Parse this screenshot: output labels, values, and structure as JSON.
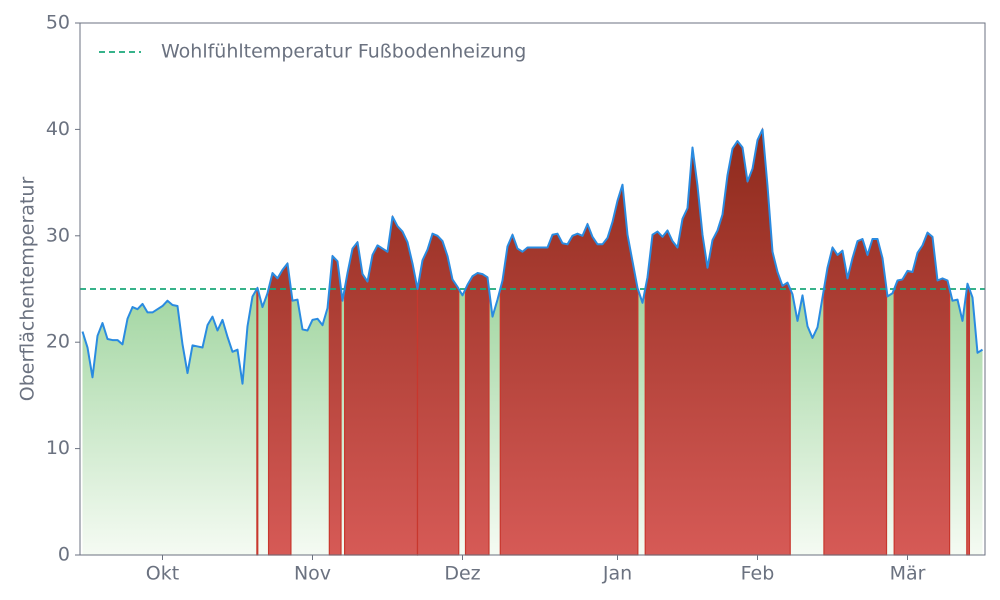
{
  "chart_data": {
    "type": "line",
    "y_label": "Oberflächentemperatur",
    "categories": [
      null,
      null,
      null,
      null,
      null,
      null,
      null,
      null,
      null,
      null,
      null,
      null,
      null,
      null,
      null,
      null,
      "Okt",
      null,
      null,
      null,
      null,
      null,
      null,
      null,
      null,
      null,
      null,
      null,
      null,
      null,
      null,
      null,
      null,
      null,
      null,
      null,
      null,
      null,
      null,
      null,
      null,
      null,
      null,
      null,
      null,
      null,
      "Nov",
      null,
      null,
      null,
      null,
      null,
      null,
      null,
      null,
      null,
      null,
      null,
      null,
      null,
      null,
      null,
      null,
      null,
      null,
      null,
      null,
      null,
      null,
      null,
      null,
      null,
      null,
      null,
      null,
      null,
      "Dez",
      null,
      null,
      null,
      null,
      null,
      null,
      null,
      null,
      null,
      null,
      null,
      null,
      null,
      null,
      null,
      null,
      null,
      null,
      null,
      null,
      null,
      null,
      null,
      null,
      null,
      null,
      null,
      null,
      null,
      null,
      "Jan",
      null,
      null,
      null,
      null,
      null,
      null,
      null,
      null,
      null,
      null,
      null,
      null,
      null,
      null,
      null,
      null,
      null,
      null,
      null,
      null,
      null,
      null,
      null,
      null,
      null,
      null,
      null,
      "Feb",
      null,
      null,
      null,
      null,
      null,
      null,
      null,
      null,
      null,
      null,
      null,
      null,
      null,
      null,
      null,
      null,
      null,
      null,
      null,
      null,
      null,
      null,
      null,
      null,
      null,
      null,
      null,
      null,
      null,
      "Mär",
      null,
      null,
      null,
      null,
      null,
      null,
      null,
      null,
      null,
      null,
      null,
      null,
      null,
      null,
      null
    ],
    "values": [
      21,
      19.5,
      16.7,
      20.6,
      21.8,
      20.3,
      20.2,
      20.2,
      19.8,
      22.2,
      23.3,
      23.1,
      23.6,
      22.8,
      22.8,
      23.1,
      23.4,
      23.9,
      23.5,
      23.4,
      19.8,
      17.1,
      19.7,
      19.6,
      19.5,
      21.6,
      22.4,
      21.1,
      22.1,
      20.5,
      19.1,
      19.3,
      16.1,
      21.5,
      24.3,
      25.1,
      23.3,
      24.6,
      26.5,
      26,
      26.8,
      27.4,
      23.9,
      24,
      21.2,
      21.1,
      22.1,
      22.2,
      21.6,
      23.2,
      28.1,
      27.6,
      23.9,
      26.5,
      28.8,
      29.4,
      26.4,
      25.7,
      28.2,
      29.1,
      28.8,
      28.5,
      31.8,
      30.9,
      30.4,
      29.4,
      27.4,
      25,
      27.7,
      28.7,
      30.2,
      30,
      29.5,
      28.1,
      25.9,
      25.2,
      24.4,
      25.4,
      26.2,
      26.5,
      26.4,
      26.1,
      22.4,
      24,
      25.8,
      29,
      30.1,
      28.8,
      28.5,
      28.9,
      28.9,
      28.9,
      28.9,
      28.9,
      30.1,
      30.2,
      29.3,
      29.2,
      30,
      30.2,
      30,
      31.1,
      29.9,
      29.2,
      29.2,
      29.8,
      31.3,
      33.3,
      34.8,
      30.1,
      27.6,
      25.1,
      23.7,
      26.1,
      30.1,
      30.4,
      29.9,
      30.5,
      29.5,
      28.9,
      31.6,
      32.6,
      38.3,
      34.7,
      30.1,
      27,
      29.6,
      30.5,
      32,
      35.7,
      38.2,
      38.9,
      38.3,
      35.1,
      36.3,
      39,
      40,
      34.7,
      28.5,
      26.6,
      25.3,
      25.6,
      24.5,
      22,
      24.4,
      21.5,
      20.4,
      21.4,
      24.2,
      27,
      28.9,
      28.2,
      28.6,
      26,
      27.9,
      29.5,
      29.7,
      28.2,
      29.7,
      29.7,
      27.9,
      24.3,
      24.6,
      25.8,
      25.9,
      26.7,
      26.6,
      28.4,
      29.1,
      30.3,
      29.9,
      25.8,
      26,
      25.8,
      23.9,
      24,
      22,
      25.5,
      24.2,
      19,
      19.3
    ],
    "color": "#2a8be0",
    "threshold": {
      "value": 25,
      "label": "Wohlfühltemperatur Fußbodenheizung",
      "color": "#1aa87a"
    },
    "ylim": [
      0,
      50
    ],
    "yticks": [
      0,
      10,
      20,
      30,
      40,
      50
    ],
    "legend": "upper left"
  }
}
